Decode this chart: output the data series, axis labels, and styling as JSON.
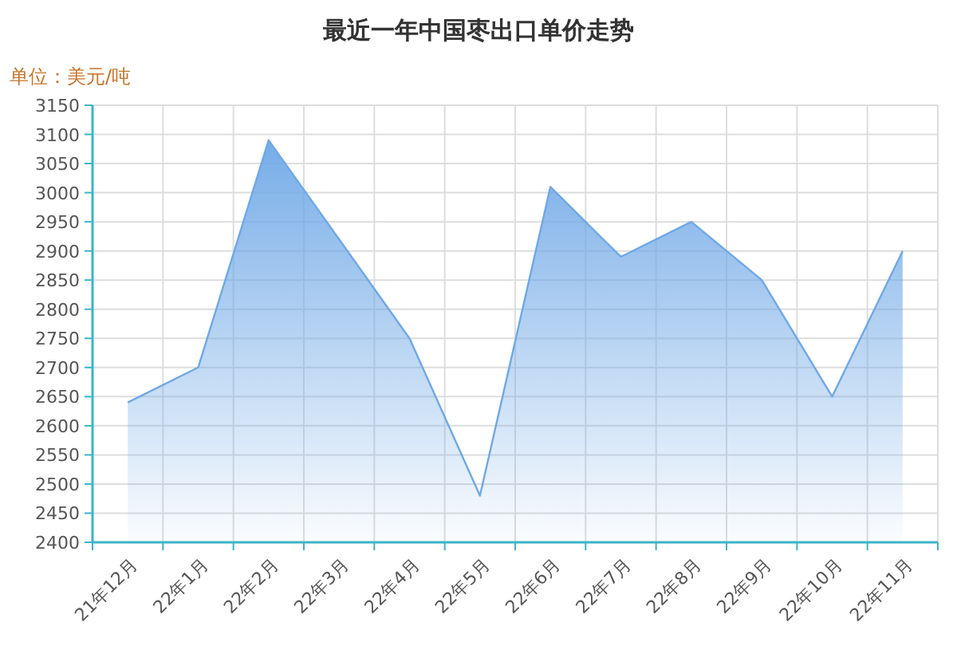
{
  "chart_data": {
    "type": "area",
    "title": "最近一年中国枣出口单价走势",
    "ylabel": "单位：美元/吨",
    "categories": [
      "21年12月",
      "22年1月",
      "22年2月",
      "22年3月",
      "22年4月",
      "22年5月",
      "22年6月",
      "22年7月",
      "22年8月",
      "22年9月",
      "22年10月",
      "22年11月"
    ],
    "values": [
      2640,
      2700,
      3090,
      2920,
      2750,
      2480,
      3010,
      2890,
      2950,
      2850,
      2650,
      2900
    ],
    "color": "#6fa8e6",
    "ylim": [
      2400,
      3150
    ],
    "yticks": [
      2400,
      2450,
      2500,
      2550,
      2600,
      2650,
      2700,
      2750,
      2800,
      2850,
      2900,
      2950,
      3000,
      3050,
      3100,
      3150
    ],
    "grid": true
  }
}
